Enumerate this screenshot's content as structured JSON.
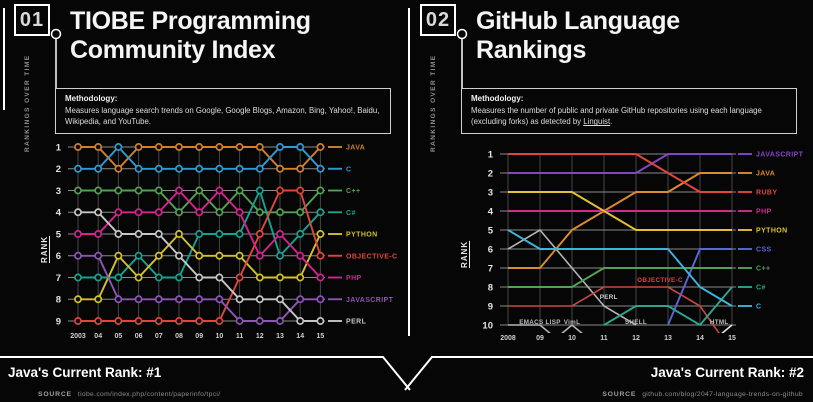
{
  "left_panel": {
    "number": "01",
    "eyebrow": "RANKINGS OVER TIME",
    "title_line1": "TIOBE Programming",
    "title_line2": "Community Index",
    "methodology_label": "Methodology:",
    "methodology_text": "Measures language search trends on Google, Google Blogs, Amazon, Bing, Yahoo!, Baidu, Wikipedia, and YouTube.",
    "rank_axis_label": "RANK",
    "current_rank_label": "Java's Current Rank: #1",
    "source_label": "SOURCE",
    "source_url": "tiobe.com/index.php/content/paperinfo/tpci/"
  },
  "right_panel": {
    "number": "02",
    "eyebrow": "RANKINGS OVER TIME",
    "title_line1": "GitHub Language",
    "title_line2": "Rankings",
    "methodology_label": "Methodology:",
    "methodology_text_before_link": "Measures the number of public and private GitHub repositories using each language (excluding forks) as detected by ",
    "methodology_link_text": "Linguist",
    "methodology_text_after_link": ".",
    "rank_axis_label": "RANK",
    "current_rank_label": "Java's Current Rank: #2",
    "source_label": "SOURCE",
    "source_url": "github.com/blog/2047-language-trends-on-github"
  },
  "chart_data": [
    {
      "type": "line",
      "subtype": "bump-ranking",
      "title": "TIOBE Programming Community Index",
      "ylabel": "RANK",
      "grid": true,
      "markers": true,
      "legend_position": "right",
      "x_labels": [
        "2003",
        "04",
        "05",
        "06",
        "07",
        "08",
        "09",
        "10",
        "11",
        "12",
        "13",
        "14",
        "15"
      ],
      "y_ticks": [
        1,
        2,
        3,
        4,
        5,
        6,
        7,
        8,
        9
      ],
      "ylim": [
        1,
        9
      ],
      "series": [
        {
          "name": "JAVA",
          "color": "#d0802e",
          "ranks": [
            1,
            1,
            2,
            1,
            1,
            1,
            1,
            1,
            1,
            1,
            2,
            2,
            1
          ]
        },
        {
          "name": "C",
          "color": "#2e9bd2",
          "ranks": [
            2,
            2,
            1,
            2,
            2,
            2,
            2,
            2,
            2,
            2,
            1,
            1,
            2
          ]
        },
        {
          "name": "C++",
          "color": "#54a054",
          "ranks": [
            3,
            3,
            3,
            3,
            3,
            4,
            3,
            4,
            3,
            4,
            4,
            4,
            3
          ]
        },
        {
          "name": "C#",
          "color": "#14a390",
          "ranks": [
            7,
            7,
            7,
            6,
            7,
            7,
            5,
            5,
            5,
            3,
            6,
            5,
            4
          ]
        },
        {
          "name": "PYTHON",
          "color": "#d3c22a",
          "ranks": [
            8,
            8,
            6,
            7,
            6,
            5,
            6,
            6,
            6,
            7,
            7,
            7,
            5
          ]
        },
        {
          "name": "OBJECTIVE-C",
          "color": "#e0463a",
          "ranks": [
            9,
            9,
            9,
            9,
            9,
            9,
            9,
            9,
            7,
            5,
            3,
            3,
            6
          ]
        },
        {
          "name": "PHP",
          "color": "#d6218e",
          "ranks": [
            5,
            5,
            4,
            4,
            4,
            3,
            4,
            3,
            4,
            6,
            5,
            6,
            7
          ]
        },
        {
          "name": "JAVASCRIPT",
          "color": "#8d55b5",
          "ranks": [
            6,
            6,
            8,
            8,
            8,
            8,
            8,
            8,
            9,
            9,
            9,
            8,
            8
          ]
        },
        {
          "name": "PERL",
          "color": "#c6c6c6",
          "ranks": [
            4,
            4,
            5,
            5,
            5,
            6,
            7,
            7,
            8,
            8,
            8,
            9,
            9
          ]
        }
      ],
      "aux_series": [],
      "annotations": []
    },
    {
      "type": "line",
      "subtype": "bump-ranking",
      "title": "GitHub Language Rankings",
      "ylabel": "RANK",
      "grid": true,
      "markers": false,
      "legend_position": "right",
      "x_labels": [
        "2008",
        "09",
        "10",
        "11",
        "12",
        "13",
        "14",
        "15"
      ],
      "y_ticks": [
        1,
        2,
        3,
        4,
        5,
        6,
        7,
        8,
        9,
        10
      ],
      "ylim": [
        1,
        10
      ],
      "series": [
        {
          "name": "JAVASCRIPT",
          "color": "#8444c8",
          "ranks": [
            2,
            2,
            2,
            2,
            2,
            1,
            1,
            1
          ]
        },
        {
          "name": "JAVA",
          "color": "#dd8b2d",
          "ranks": [
            7,
            7,
            5,
            4,
            3,
            3,
            2,
            2
          ]
        },
        {
          "name": "RUBY",
          "color": "#e0463c",
          "ranks": [
            1,
            1,
            1,
            1,
            1,
            2,
            3,
            3
          ]
        },
        {
          "name": "PHP",
          "color": "#cb2d8f",
          "ranks": [
            4,
            4,
            4,
            4,
            4,
            4,
            4,
            4
          ]
        },
        {
          "name": "PYTHON",
          "color": "#e2c32f",
          "ranks": [
            3,
            3,
            3,
            4,
            5,
            5,
            5,
            5
          ]
        },
        {
          "name": "CSS",
          "color": "#5b67d8",
          "ranks": [
            null,
            null,
            null,
            null,
            null,
            10,
            6,
            6
          ]
        },
        {
          "name": "C++",
          "color": "#54a054",
          "ranks": [
            8,
            8,
            8,
            7,
            7,
            7,
            7,
            7
          ]
        },
        {
          "name": "C#",
          "color": "#2ba58e",
          "ranks": [
            null,
            null,
            null,
            10,
            9,
            9,
            10,
            8
          ]
        },
        {
          "name": "C",
          "color": "#3cb4dc",
          "ranks": [
            5,
            6,
            6,
            6,
            6,
            6,
            8,
            9
          ]
        }
      ],
      "aux_series": [
        {
          "name": "PERL",
          "color": "#b5b5b5",
          "ranks": [
            6,
            5,
            7,
            9,
            10,
            null,
            null,
            null
          ]
        },
        {
          "name": "EMACS LISP",
          "color": "#b5b5b5",
          "ranks": [
            10,
            10,
            11.4,
            null,
            null,
            null,
            null,
            null
          ]
        },
        {
          "name": "VIML",
          "color": "#b5b5b5",
          "ranks": [
            null,
            11.4,
            10,
            11.4,
            null,
            null,
            null,
            null
          ]
        },
        {
          "name": "OBJECTIVE-C",
          "color": "#c4493e",
          "ranks": [
            9,
            9,
            9,
            8,
            8,
            8,
            9,
            11.4
          ]
        },
        {
          "name": "HTML",
          "color": "#e2e2e2",
          "ranks": [
            null,
            null,
            null,
            null,
            null,
            null,
            11.4,
            10
          ]
        }
      ],
      "annotations": [
        {
          "text": "EMACS LISP",
          "x": 1.0,
          "y": 9.82,
          "color": "#bdbdbd"
        },
        {
          "text": "VimL",
          "x": 2.0,
          "y": 9.82,
          "color": "#bdbdbd"
        },
        {
          "text": "SHELL",
          "x": 4.0,
          "y": 9.82,
          "color": "#bdbdbd"
        },
        {
          "text": "HTML",
          "x": 6.6,
          "y": 9.82,
          "color": "#bdbdbd"
        },
        {
          "text": "PERL",
          "x": 3.15,
          "y": 8.5,
          "color": "#cfcfcf"
        },
        {
          "text": "OBJECTIVE-C",
          "x": 4.75,
          "y": 7.6,
          "color": "#e0463c"
        }
      ]
    }
  ]
}
